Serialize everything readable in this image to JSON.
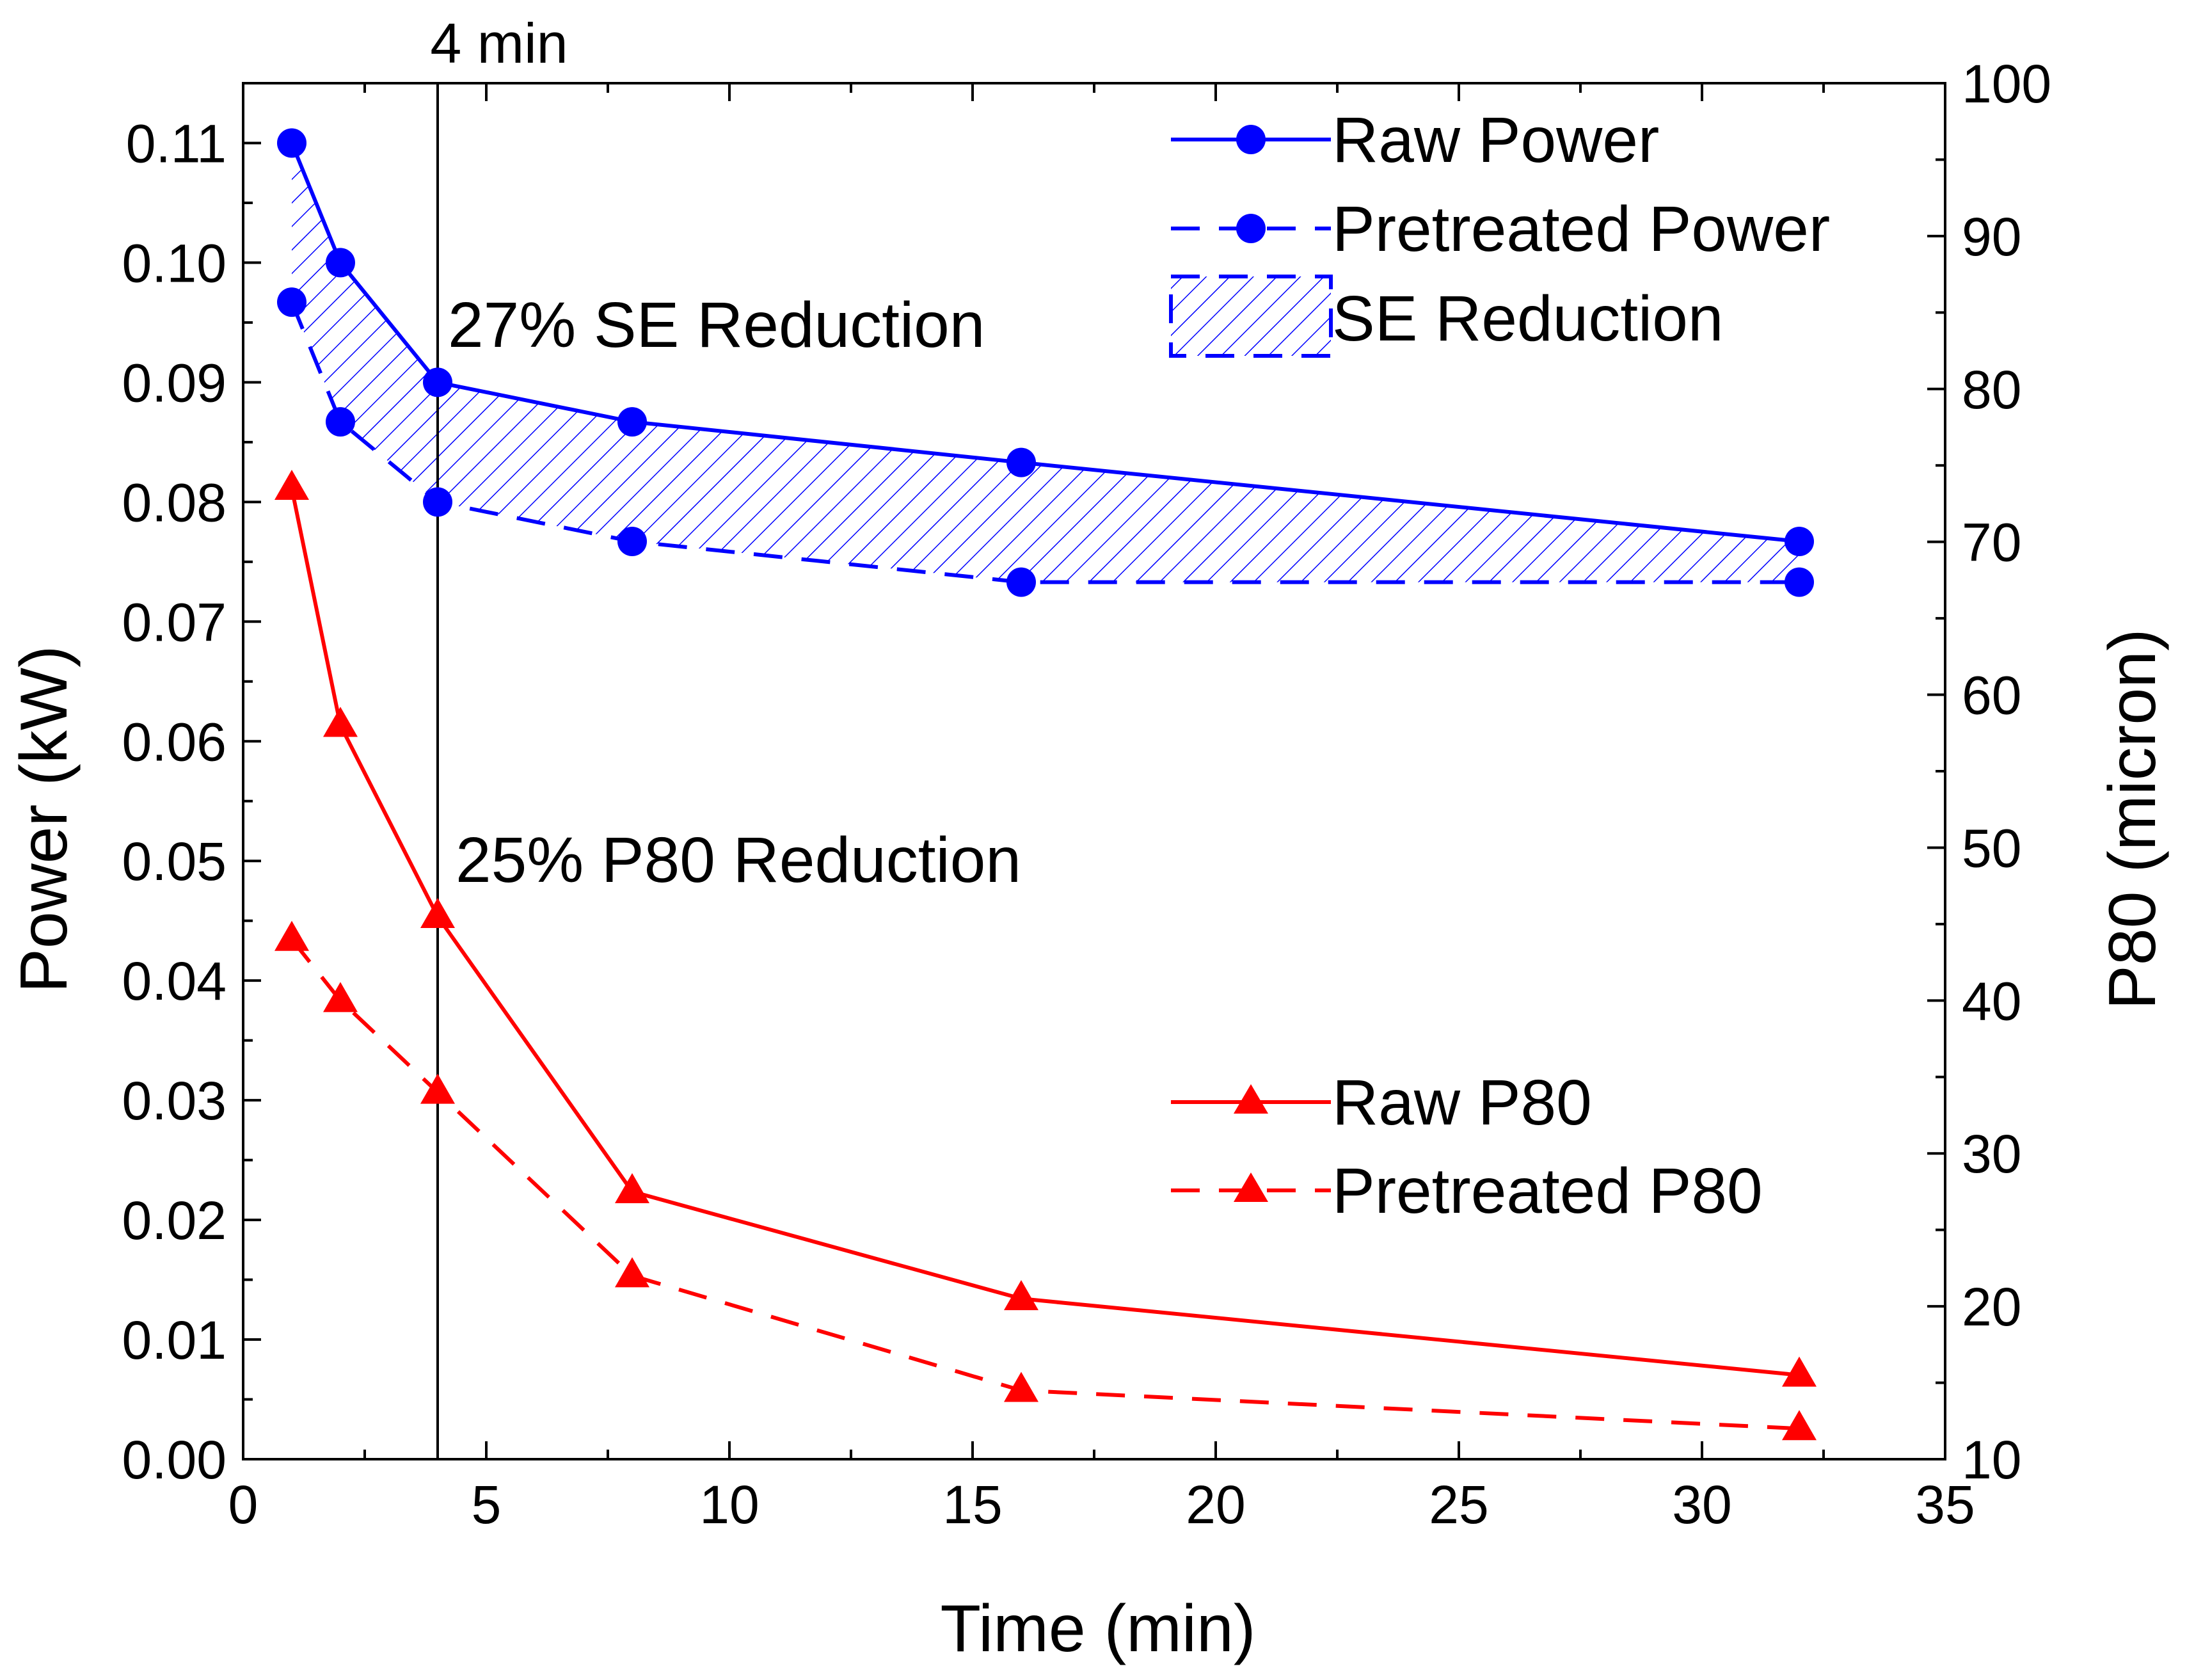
{
  "chart_data": {
    "type": "line",
    "title": "",
    "xlabel": "Time (min)",
    "ylabel_left": "Power (kW)",
    "ylabel_right": "P80 (micron)",
    "xlim": [
      0,
      35
    ],
    "ylim_left": [
      0,
      0.115
    ],
    "ylim_right": [
      10,
      100
    ],
    "x_ticks": [
      "0",
      "5",
      "10",
      "15",
      "20",
      "25",
      "30",
      "35"
    ],
    "y_left_ticks": [
      "0.00",
      "0.01",
      "0.02",
      "0.03",
      "0.04",
      "0.05",
      "0.06",
      "0.07",
      "0.08",
      "0.09",
      "0.10",
      "0.11"
    ],
    "y_right_ticks": [
      "10",
      "20",
      "30",
      "40",
      "50",
      "60",
      "70",
      "80",
      "90",
      "100"
    ],
    "grid": false,
    "x": [
      1,
      2,
      4,
      8,
      16,
      32
    ],
    "series": [
      {
        "name": "Raw Power",
        "axis": "left",
        "style": "solid",
        "marker": "circle",
        "color": "#0000ff",
        "values": [
          0.11,
          0.1,
          0.09,
          0.0867,
          0.0833,
          0.0767
        ]
      },
      {
        "name": "Pretreated Power",
        "axis": "left",
        "style": "dashed",
        "marker": "circle",
        "color": "#0000ff",
        "values": [
          0.0967,
          0.0867,
          0.08,
          0.0767,
          0.0733,
          0.0733
        ]
      },
      {
        "name": "Raw P80",
        "axis": "right",
        "style": "solid",
        "marker": "triangle",
        "color": "#ff0000",
        "values": [
          73.5,
          58,
          45.5,
          27.5,
          20.5,
          15.5
        ]
      },
      {
        "name": "Pretreated P80",
        "axis": "right",
        "style": "dashed",
        "marker": "triangle",
        "color": "#ff0000",
        "values": [
          44,
          40,
          34,
          22,
          14.5,
          12
        ]
      }
    ],
    "shaded_region": {
      "name": "SE Reduction",
      "between": [
        "Raw Power",
        "Pretreated Power"
      ],
      "pattern": "hatch",
      "color": "#0000ff"
    },
    "vline": {
      "x": 4,
      "label": "4 min"
    },
    "annotations": [
      {
        "text": "27% SE Reduction"
      },
      {
        "text": "25% P80 Reduction"
      }
    ],
    "legend_power": [
      "Raw Power",
      "Pretreated Power",
      "SE Reduction"
    ],
    "legend_p80": [
      "Raw P80",
      "Pretreated P80"
    ]
  }
}
